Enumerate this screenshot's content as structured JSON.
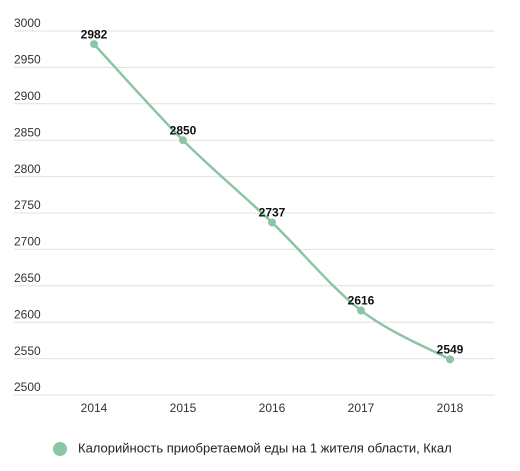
{
  "chart_data": {
    "type": "line",
    "categories": [
      "2014",
      "2015",
      "2016",
      "2017",
      "2018"
    ],
    "series": [
      {
        "name": "Калорийность приобретаемой еды на 1 жителя области, Ккал",
        "color": "#8cc5a6",
        "values": [
          2982,
          2850,
          2737,
          2616,
          2549
        ]
      }
    ],
    "ylim": [
      2500,
      3000
    ],
    "yticks": [
      2500,
      2550,
      2600,
      2650,
      2700,
      2750,
      2800,
      2850,
      2900,
      2950,
      3000
    ],
    "grid": true,
    "legend": "bottom"
  }
}
